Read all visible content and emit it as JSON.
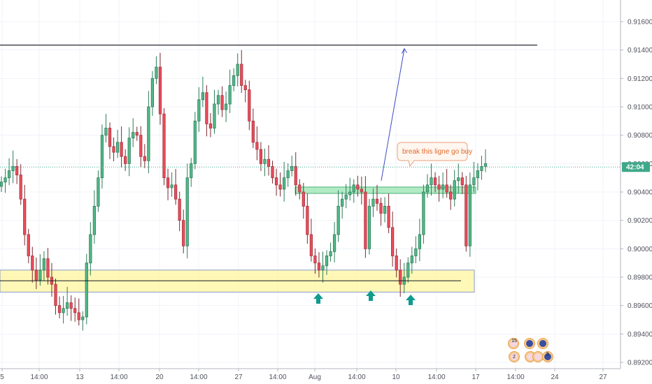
{
  "chart_data": {
    "type": "candlestick",
    "y_axis": {
      "ylim": [
        0.8915,
        0.9172
      ],
      "ticks": [
        "0.91600",
        "0.91400",
        "0.91200",
        "0.91000",
        "0.90800",
        "0.90600",
        "0.90400",
        "0.90200",
        "0.90000",
        "0.89800",
        "0.89600",
        "0.89400",
        "0.89200"
      ]
    },
    "x_axis": {
      "ticks": [
        "5",
        "14:00",
        "13",
        "14:00",
        "20",
        "14:00",
        "27",
        "14:00",
        "Aug",
        "14:00",
        "10",
        "14:00",
        "17",
        "14:00",
        "24",
        "27"
      ]
    },
    "current_price": {
      "label": "42:04",
      "value": 0.90576
    },
    "resistance_line": {
      "value": 0.91435
    },
    "support_line": {
      "value": 0.89775
    },
    "support_zone": {
      "low": 0.89695,
      "high": 0.8985
    },
    "resistance_zone": {
      "low": 0.9039,
      "high": 0.90435
    },
    "annotation": {
      "text": "break this ligne go buy"
    },
    "target_arrow": {
      "from_value": 0.9048,
      "to_value": 0.9141
    },
    "buy_arrows": 3,
    "colors": {
      "up": "#53b987",
      "down": "#eb4d5c",
      "up_border": "#2e7d5b",
      "down_border": "#a8323d",
      "support_zone": "#fff59d",
      "resistance_zone": "#9ee6b5",
      "arrow": "#3d4bc4",
      "buy_arrow": "#0f9b8e",
      "price_tag": "#3fa88a",
      "note_border": "#e8a27a"
    },
    "events": [
      {
        "label": "15"
      },
      {
        "label": "2"
      },
      {
        "label": "5"
      }
    ],
    "candles_close": [
      0.9047,
      0.905,
      0.9055,
      0.9058,
      0.9052,
      0.9035,
      0.901,
      0.8995,
      0.8985,
      0.8978,
      0.8985,
      0.8993,
      0.898,
      0.8975,
      0.896,
      0.8955,
      0.8958,
      0.8962,
      0.8958,
      0.8955,
      0.895,
      0.8952,
      0.899,
      0.901,
      0.903,
      0.905,
      0.908,
      0.9085,
      0.9072,
      0.9068,
      0.9075,
      0.9065,
      0.906,
      0.9078,
      0.9082,
      0.908,
      0.9065,
      0.9062,
      0.91,
      0.912,
      0.9128,
      0.9095,
      0.905,
      0.9043,
      0.9045,
      0.9035,
      0.902,
      0.9002,
      0.905,
      0.906,
      0.909,
      0.9105,
      0.911,
      0.9088,
      0.9085,
      0.9102,
      0.9108,
      0.9098,
      0.9102,
      0.9115,
      0.9122,
      0.913,
      0.9115,
      0.9112,
      0.909,
      0.9075,
      0.907,
      0.906,
      0.9063,
      0.9058,
      0.905,
      0.9045,
      0.9042,
      0.905,
      0.9055,
      0.9058,
      0.9045,
      0.904,
      0.903,
      0.901,
      0.8995,
      0.899,
      0.8985,
      0.8988,
      0.8995,
      0.8998,
      0.901,
      0.903,
      0.9035,
      0.9038,
      0.904,
      0.9045,
      0.9042,
      0.904,
      0.9,
      0.903,
      0.9035,
      0.9032,
      0.9025,
      0.903,
      0.9015,
      0.8995,
      0.8985,
      0.8975,
      0.898,
      0.899,
      0.8995,
      0.9,
      0.901,
      0.904,
      0.9045,
      0.905,
      0.9045,
      0.9042,
      0.9045,
      0.904,
      0.9035,
      0.9048,
      0.905,
      0.9045,
      0.9002,
      0.9045,
      0.905,
      0.9055,
      0.9058,
      0.906
    ]
  }
}
